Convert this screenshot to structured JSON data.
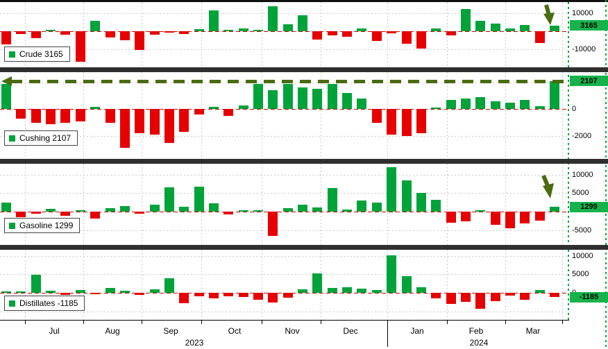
{
  "colors": {
    "positive": "#00a33a",
    "negative": "#e60000",
    "last_box": "#16b24b",
    "zero_line": "#d40000",
    "grid": "#c9c9c9",
    "separator": "#2f2f2f",
    "annotation": "#4a6b10",
    "axis_green_line": "#00a33a"
  },
  "xaxis": {
    "x_unit": "weekly bars, Jul 2023 - Mar 2024",
    "months": [
      {
        "label": "Jul",
        "x": 78
      },
      {
        "label": "Aug",
        "x": 162
      },
      {
        "label": "Sep",
        "x": 246
      },
      {
        "label": "Oct",
        "x": 338
      },
      {
        "label": "Nov",
        "x": 421
      },
      {
        "label": "Dec",
        "x": 505
      },
      {
        "label": "Jan",
        "x": 601
      },
      {
        "label": "Feb",
        "x": 686
      },
      {
        "label": "Mar",
        "x": 768
      }
    ],
    "years": [
      {
        "label": "2023",
        "x": 280
      },
      {
        "label": "2024",
        "x": 690
      }
    ],
    "gridlines_x": [
      36,
      120,
      204,
      290,
      377,
      462,
      558,
      644,
      728,
      810
    ],
    "year_divider_x": 558
  },
  "chart_data": [
    {
      "type": "bar",
      "id": "crude",
      "legend_label": "Crude 3165",
      "legend_color": "#00a33a",
      "last_value": 3165,
      "last_label": "3165",
      "ylim": [
        -20000,
        16000
      ],
      "yticks": [
        {
          "v": 10000,
          "label": "10000"
        },
        {
          "v": -10000,
          "label": "-10000"
        }
      ],
      "grid_only": [],
      "annotation": "down_arrow",
      "values": [
        -7500,
        -1500,
        -4000,
        800,
        -2000,
        -17000,
        5800,
        -3500,
        -5000,
        -10500,
        -2200,
        -1000,
        -1500,
        1000,
        11600,
        800,
        1500,
        600,
        13800,
        3600,
        8700,
        -4500,
        -2500,
        -3000,
        1600,
        -5500,
        -1200,
        -7000,
        -9500,
        1300,
        -2500,
        12000,
        5500,
        4200,
        1400,
        3200,
        -6500,
        3165
      ]
    },
    {
      "type": "bar",
      "id": "cushing",
      "legend_label": "Cushing 2107",
      "legend_color": "#00a33a",
      "last_value": 2107,
      "last_label": "2107",
      "ylim": [
        -3700,
        2750
      ],
      "yticks": [
        {
          "v": 0,
          "label": "0"
        },
        {
          "v": -2000,
          "label": "-2000"
        }
      ],
      "grid_only": [
        2000
      ],
      "annotation": "dashed_left_arrow",
      "values": [
        1900,
        -700,
        -1000,
        -1100,
        -1000,
        -900,
        150,
        -1000,
        -2900,
        -1800,
        -1900,
        -2500,
        -1700,
        -400,
        150,
        -500,
        300,
        1900,
        1400,
        1850,
        1600,
        1500,
        1900,
        1200,
        800,
        -1000,
        -1900,
        -2000,
        -1800,
        100,
        700,
        800,
        900,
        600,
        500,
        700,
        200,
        2107
      ]
    },
    {
      "type": "bar",
      "id": "gasoline",
      "legend_label": "Gasoline 1299",
      "legend_color": "#00a33a",
      "last_value": 1299,
      "last_label": "1299",
      "ylim": [
        -8900,
        12900
      ],
      "yticks": [
        {
          "v": 10000,
          "label": "10000"
        },
        {
          "v": 5000,
          "label": "5000"
        },
        {
          "v": -5000,
          "label": "-5000"
        }
      ],
      "grid_only": [],
      "annotation": "down_arrow",
      "values": [
        2500,
        -1500,
        -500,
        800,
        -1000,
        500,
        -1800,
        1000,
        1500,
        -600,
        2000,
        6500,
        1300,
        6800,
        2200,
        -800,
        500,
        500,
        -6500,
        900,
        2000,
        1200,
        6300,
        600,
        3000,
        2400,
        12000,
        8500,
        5000,
        3200,
        -3000,
        -2600,
        400,
        -3600,
        -4400,
        -3200,
        -2400,
        1299
      ]
    },
    {
      "type": "bar",
      "id": "distillates",
      "legend_label": "Distillates -1185",
      "legend_color": "#00a33a",
      "last_value": -1185,
      "last_label": "-1185",
      "ylim": [
        -7300,
        11600
      ],
      "yticks": [
        {
          "v": 10000,
          "label": "10000"
        },
        {
          "v": 5000,
          "label": "5000"
        },
        {
          "v": 0,
          "label": "0"
        }
      ],
      "grid_only": [
        -5000
      ],
      "annotation": null,
      "values": [
        300,
        400,
        4800,
        600,
        -500,
        800,
        -400,
        1300,
        500,
        -600,
        900,
        4000,
        -2800,
        -1000,
        -1400,
        -900,
        -1200,
        -1800,
        -2700,
        -1300,
        1000,
        5300,
        1400,
        1500,
        1200,
        800,
        10100,
        4500,
        1500,
        -1500,
        -3000,
        -2500,
        -4300,
        -2200,
        -700,
        -1900,
        700,
        -1185
      ]
    }
  ]
}
